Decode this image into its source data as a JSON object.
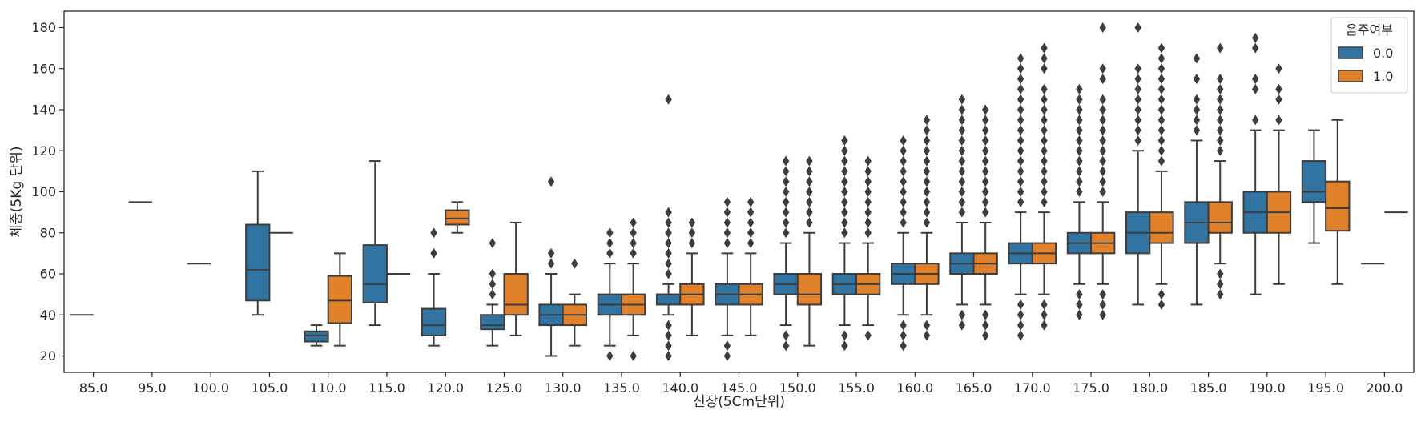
{
  "chart_data": {
    "type": "box",
    "xlabel": "신장(5Cm단위)",
    "ylabel": "체중(5Kg 단위)",
    "ylim": [
      12,
      188
    ],
    "yticks": [
      20,
      40,
      60,
      80,
      100,
      120,
      140,
      160,
      180
    ],
    "categories": [
      "85.0",
      "95.0",
      "100.0",
      "105.0",
      "110.0",
      "115.0",
      "120.0",
      "125.0",
      "130.0",
      "135.0",
      "140.0",
      "145.0",
      "150.0",
      "155.0",
      "160.0",
      "165.0",
      "170.0",
      "175.0",
      "180.0",
      "185.0",
      "190.0",
      "195.0",
      "200.0"
    ],
    "legend": {
      "title": "음주여부",
      "position": "top-right"
    },
    "grid": false,
    "series": [
      {
        "name": "0.0",
        "color": "#3274a1",
        "boxes": [
          {
            "cat": 0,
            "whislo": 40,
            "q1": 40,
            "med": 40,
            "q3": 40,
            "whishi": 40,
            "fliers": []
          },
          {
            "cat": 1,
            "whislo": 95,
            "q1": 95,
            "med": 95,
            "q3": 95,
            "whishi": 95,
            "fliers": []
          },
          {
            "cat": 2,
            "whislo": 65,
            "q1": 65,
            "med": 65,
            "q3": 65,
            "whishi": 65,
            "fliers": []
          },
          {
            "cat": 3,
            "whislo": 40,
            "q1": 47,
            "med": 62,
            "q3": 84,
            "whishi": 110,
            "fliers": []
          },
          {
            "cat": 4,
            "whislo": 25,
            "q1": 27,
            "med": 30,
            "q3": 32,
            "whishi": 35,
            "fliers": []
          },
          {
            "cat": 5,
            "whislo": 35,
            "q1": 46,
            "med": 55,
            "q3": 74,
            "whishi": 115,
            "fliers": []
          },
          {
            "cat": 6,
            "whislo": 25,
            "q1": 30,
            "med": 35,
            "q3": 43,
            "whishi": 60,
            "fliers": [
              70,
              80
            ]
          },
          {
            "cat": 7,
            "whislo": 25,
            "q1": 33,
            "med": 35,
            "q3": 40,
            "whishi": 45,
            "fliers": [
              50,
              55,
              60,
              75
            ]
          },
          {
            "cat": 8,
            "whislo": 20,
            "q1": 35,
            "med": 40,
            "q3": 45,
            "whishi": 60,
            "fliers": [
              65,
              70,
              105
            ]
          },
          {
            "cat": 9,
            "whislo": 25,
            "q1": 40,
            "med": 45,
            "q3": 50,
            "whishi": 65,
            "fliers": [
              20,
              70,
              75,
              80
            ]
          },
          {
            "cat": 10,
            "whislo": 40,
            "q1": 45,
            "med": 50,
            "q3": 50,
            "whishi": 55,
            "fliers": [
              20,
              25,
              30,
              35,
              60,
              65,
              70,
              75,
              80,
              85,
              90,
              145
            ]
          },
          {
            "cat": 11,
            "whislo": 30,
            "q1": 45,
            "med": 50,
            "q3": 55,
            "whishi": 70,
            "fliers": [
              20,
              25,
              75,
              80,
              85,
              90,
              95
            ]
          },
          {
            "cat": 12,
            "whislo": 35,
            "q1": 50,
            "med": 55,
            "q3": 60,
            "whishi": 75,
            "fliers": [
              25,
              30,
              80,
              85,
              90,
              95,
              100,
              105,
              110,
              115
            ]
          },
          {
            "cat": 13,
            "whislo": 35,
            "q1": 50,
            "med": 55,
            "q3": 60,
            "whishi": 75,
            "fliers": [
              25,
              30,
              80,
              85,
              90,
              95,
              100,
              105,
              110,
              115,
              120,
              125
            ]
          },
          {
            "cat": 14,
            "whislo": 40,
            "q1": 55,
            "med": 60,
            "q3": 65,
            "whishi": 80,
            "fliers": [
              25,
              30,
              35,
              85,
              90,
              95,
              100,
              105,
              110,
              115,
              120,
              125
            ]
          },
          {
            "cat": 15,
            "whislo": 45,
            "q1": 60,
            "med": 65,
            "q3": 70,
            "whishi": 85,
            "fliers": [
              35,
              40,
              90,
              95,
              100,
              105,
              110,
              115,
              120,
              125,
              130,
              135,
              140,
              145
            ]
          },
          {
            "cat": 16,
            "whislo": 50,
            "q1": 65,
            "med": 70,
            "q3": 75,
            "whishi": 90,
            "fliers": [
              30,
              35,
              40,
              45,
              95,
              100,
              105,
              110,
              115,
              120,
              125,
              130,
              135,
              140,
              145,
              150,
              155,
              160,
              165
            ]
          },
          {
            "cat": 17,
            "whislo": 55,
            "q1": 70,
            "med": 75,
            "q3": 80,
            "whishi": 95,
            "fliers": [
              40,
              45,
              50,
              100,
              105,
              110,
              115,
              120,
              125,
              130,
              135,
              140,
              145,
              150
            ]
          },
          {
            "cat": 18,
            "whislo": 45,
            "q1": 70,
            "med": 80,
            "q3": 90,
            "whishi": 120,
            "fliers": [
              125,
              130,
              135,
              140,
              145,
              150,
              155,
              160,
              180
            ]
          },
          {
            "cat": 19,
            "whislo": 45,
            "q1": 75,
            "med": 85,
            "q3": 95,
            "whishi": 125,
            "fliers": [
              130,
              135,
              140,
              145,
              155,
              165
            ]
          },
          {
            "cat": 20,
            "whislo": 50,
            "q1": 80,
            "med": 90,
            "q3": 100,
            "whishi": 130,
            "fliers": [
              135,
              150,
              155,
              170,
              175
            ]
          },
          {
            "cat": 21,
            "whislo": 75,
            "q1": 95,
            "med": 100,
            "q3": 115,
            "whishi": 130,
            "fliers": []
          },
          {
            "cat": 22,
            "whislo": 65,
            "q1": 65,
            "med": 65,
            "q3": 65,
            "whishi": 65,
            "fliers": []
          }
        ]
      },
      {
        "name": "1.0",
        "color": "#e1812c",
        "boxes": [
          {
            "cat": 3,
            "whislo": 80,
            "q1": 80,
            "med": 80,
            "q3": 80,
            "whishi": 80,
            "fliers": []
          },
          {
            "cat": 4,
            "whislo": 25,
            "q1": 36,
            "med": 47,
            "q3": 59,
            "whishi": 70,
            "fliers": []
          },
          {
            "cat": 5,
            "whislo": 60,
            "q1": 60,
            "med": 60,
            "q3": 60,
            "whishi": 60,
            "fliers": []
          },
          {
            "cat": 6,
            "whislo": 80,
            "q1": 84,
            "med": 87,
            "q3": 91,
            "whishi": 95,
            "fliers": []
          },
          {
            "cat": 7,
            "whislo": 30,
            "q1": 40,
            "med": 45,
            "q3": 60,
            "whishi": 85,
            "fliers": []
          },
          {
            "cat": 8,
            "whislo": 25,
            "q1": 35,
            "med": 40,
            "q3": 45,
            "whishi": 50,
            "fliers": [
              65
            ]
          },
          {
            "cat": 9,
            "whislo": 30,
            "q1": 40,
            "med": 45,
            "q3": 50,
            "whishi": 65,
            "fliers": [
              20,
              70,
              75,
              80,
              85
            ]
          },
          {
            "cat": 10,
            "whislo": 30,
            "q1": 45,
            "med": 50,
            "q3": 55,
            "whishi": 70,
            "fliers": [
              75,
              80,
              85
            ]
          },
          {
            "cat": 11,
            "whislo": 30,
            "q1": 45,
            "med": 50,
            "q3": 55,
            "whishi": 70,
            "fliers": [
              75,
              80,
              85,
              90,
              95
            ]
          },
          {
            "cat": 12,
            "whislo": 25,
            "q1": 45,
            "med": 50,
            "q3": 60,
            "whishi": 80,
            "fliers": [
              85,
              90,
              95,
              100,
              105,
              110,
              115
            ]
          },
          {
            "cat": 13,
            "whislo": 35,
            "q1": 50,
            "med": 55,
            "q3": 60,
            "whishi": 75,
            "fliers": [
              30,
              80,
              85,
              90,
              95,
              100,
              105,
              110,
              115
            ]
          },
          {
            "cat": 14,
            "whislo": 40,
            "q1": 55,
            "med": 60,
            "q3": 65,
            "whishi": 80,
            "fliers": [
              30,
              35,
              85,
              90,
              95,
              100,
              105,
              110,
              115,
              120,
              125,
              130,
              135
            ]
          },
          {
            "cat": 15,
            "whislo": 45,
            "q1": 60,
            "med": 65,
            "q3": 70,
            "whishi": 85,
            "fliers": [
              30,
              35,
              40,
              90,
              95,
              100,
              105,
              110,
              115,
              120,
              125,
              130,
              135,
              140
            ]
          },
          {
            "cat": 16,
            "whislo": 50,
            "q1": 65,
            "med": 70,
            "q3": 75,
            "whishi": 90,
            "fliers": [
              35,
              40,
              45,
              95,
              100,
              105,
              110,
              115,
              120,
              125,
              130,
              135,
              140,
              145,
              150,
              160,
              165,
              170
            ]
          },
          {
            "cat": 17,
            "whislo": 55,
            "q1": 70,
            "med": 75,
            "q3": 80,
            "whishi": 95,
            "fliers": [
              40,
              45,
              50,
              100,
              105,
              110,
              115,
              120,
              125,
              130,
              135,
              140,
              145,
              155,
              160,
              180
            ]
          },
          {
            "cat": 18,
            "whislo": 55,
            "q1": 75,
            "med": 80,
            "q3": 90,
            "whishi": 110,
            "fliers": [
              45,
              50,
              115,
              120,
              125,
              130,
              135,
              140,
              145,
              150,
              155,
              160,
              165,
              170
            ]
          },
          {
            "cat": 19,
            "whislo": 65,
            "q1": 80,
            "med": 85,
            "q3": 95,
            "whishi": 115,
            "fliers": [
              50,
              55,
              60,
              120,
              125,
              130,
              135,
              140,
              145,
              150,
              155,
              170
            ]
          },
          {
            "cat": 20,
            "whislo": 55,
            "q1": 80,
            "med": 90,
            "q3": 100,
            "whishi": 130,
            "fliers": [
              135,
              145,
              150,
              160
            ]
          },
          {
            "cat": 21,
            "whislo": 55,
            "q1": 81,
            "med": 92,
            "q3": 105,
            "whishi": 135,
            "fliers": []
          },
          {
            "cat": 22,
            "whislo": 90,
            "q1": 90,
            "med": 90,
            "q3": 90,
            "whishi": 90,
            "fliers": []
          }
        ]
      }
    ]
  }
}
